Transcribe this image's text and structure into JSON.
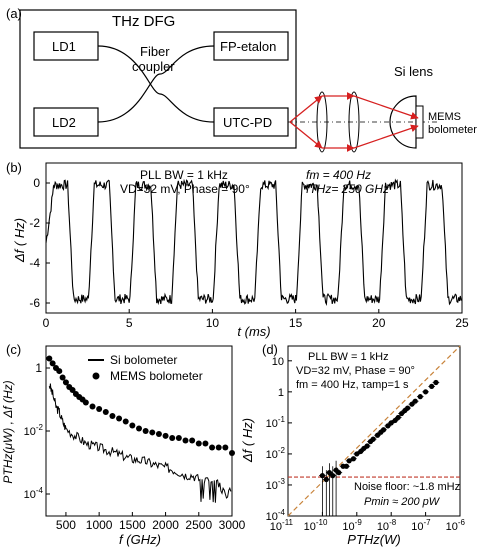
{
  "panel_a": {
    "tag": "(a)",
    "dfg_title": "THz DFG",
    "ld1": "LD1",
    "ld2": "LD2",
    "fiber_coupler_1": "Fiber",
    "fiber_coupler_2": "coupler",
    "fp_etalon": "FP-etalon",
    "utc_pd": "UTC-PD",
    "si_lens": "Si lens",
    "mems_1": "MEMS",
    "mems_2": "bolometer"
  },
  "chart_data": [
    {
      "id": "b",
      "type": "line",
      "tag": "(b)",
      "xlabel": "t (ms)",
      "ylabel": "Δf ( Hz)",
      "xlim": [
        0,
        25
      ],
      "ylim": [
        -6.5,
        1
      ],
      "xticks": [
        0,
        5,
        10,
        15,
        20,
        25
      ],
      "yticks": [
        0,
        -2,
        -4,
        -6
      ],
      "annotations": [
        "PLL BW = 1 kHz",
        "VD=32 mV, Phase = 90°",
        "fm = 400 Hz",
        "fTHz= 250 GHz"
      ],
      "square_wave": {
        "period_ms": 2.5,
        "high": -0.1,
        "low": -5.8,
        "start_ms": 0.4
      },
      "series": [
        {
          "values_note": ""
        }
      ]
    },
    {
      "id": "c",
      "type": "scatter",
      "tag": "(c)",
      "xlabel": "f (GHz)",
      "ylabel": "PTHz(μW) , Δf (Hz)",
      "xlim": [
        200,
        3000
      ],
      "ylim": [
        2e-05,
        5
      ],
      "yscale": "log",
      "xticks": [
        500,
        1000,
        1500,
        2000,
        2500,
        3000
      ],
      "yticks": [
        "1",
        "10-2",
        "10-4"
      ],
      "legend": [
        "Si bolometer",
        "MEMS bolometer"
      ],
      "series": [
        {
          "name": "Si bolometer",
          "x": [
            250,
            300,
            350,
            400,
            450,
            500,
            600,
            700,
            800,
            900,
            1000,
            1100,
            1200,
            1300,
            1400,
            1500,
            1600,
            1700,
            1800,
            1900,
            2000,
            2100,
            2200,
            2300,
            2400,
            2500,
            2600,
            2700,
            2800,
            2900,
            3000
          ],
          "values": [
            0.3,
            0.15,
            0.06,
            0.04,
            0.02,
            0.012,
            0.008,
            0.006,
            0.004,
            0.0035,
            0.003,
            0.0025,
            0.0022,
            0.0018,
            0.0015,
            0.0013,
            0.0012,
            0.0011,
            0.0009,
            0.0008,
            0.0007,
            0.0006,
            0.0005,
            0.0004,
            0.0004,
            0.0003,
            0.0003,
            0.0002,
            0.0002,
            0.0001,
            0.00012
          ]
        },
        {
          "name": "MEMS bolometer",
          "x": [
            250,
            300,
            350,
            400,
            450,
            500,
            550,
            600,
            650,
            700,
            750,
            800,
            900,
            1000,
            1100,
            1200,
            1300,
            1400,
            1500,
            1600,
            1700,
            1800,
            1900,
            2000,
            2100,
            2200,
            2300,
            2400,
            2500,
            2600,
            2700,
            2800,
            2900,
            3000
          ],
          "values": [
            2.0,
            1.4,
            1.0,
            0.8,
            0.5,
            0.35,
            0.25,
            0.2,
            0.15,
            0.12,
            0.1,
            0.08,
            0.06,
            0.05,
            0.04,
            0.03,
            0.025,
            0.02,
            0.015,
            0.012,
            0.01,
            0.009,
            0.008,
            0.007,
            0.006,
            0.006,
            0.005,
            0.005,
            0.004,
            0.004,
            0.003,
            0.003,
            0.003,
            0.002
          ]
        }
      ]
    },
    {
      "id": "d",
      "type": "scatter",
      "tag": "(d)",
      "xlabel": "PTHz(W)",
      "ylabel": "Δf ( Hz)",
      "xscale": "log",
      "yscale": "log",
      "xlim": [
        1e-11,
        1e-06
      ],
      "ylim": [
        0.0001,
        30
      ],
      "xticks": [
        "10-11",
        "10-10",
        "10-9",
        "10-8",
        "10-7",
        "10-6"
      ],
      "yticks": [
        "10-4",
        "10-3",
        "10-2",
        "10-1",
        "1",
        "10"
      ],
      "annotations": [
        "PLL BW = 1 kHz",
        "VD=32 mV, Phase = 90°",
        "fm = 400 Hz, τamp=1 s",
        "Noise floor: ~1.8 mHz",
        "Pmin ≈ 200 pW"
      ],
      "noise_floor": 0.0018,
      "series": [
        {
          "name": "",
          "x": [
            1e-10,
            1.3e-10,
            1.6e-10,
            2e-10,
            2.5e-10,
            3e-10,
            4e-10,
            5e-10,
            6e-10,
            8e-10,
            1e-09,
            1.3e-09,
            1.6e-09,
            2e-09,
            2.5e-09,
            3e-09,
            4e-09,
            5e-09,
            6e-09,
            8e-09,
            1e-08,
            1.3e-08,
            1.6e-08,
            2e-08,
            2.5e-08,
            3e-08,
            4e-08,
            5e-08,
            7e-08,
            1e-07,
            1.5e-07,
            2e-07
          ],
          "values": [
            0.002,
            0.0015,
            0.0025,
            0.002,
            0.003,
            0.0025,
            0.004,
            0.004,
            0.006,
            0.007,
            0.01,
            0.012,
            0.015,
            0.018,
            0.025,
            0.03,
            0.04,
            0.05,
            0.06,
            0.08,
            0.1,
            0.12,
            0.15,
            0.2,
            0.25,
            0.3,
            0.4,
            0.5,
            0.7,
            1,
            1.5,
            2
          ]
        }
      ]
    }
  ]
}
